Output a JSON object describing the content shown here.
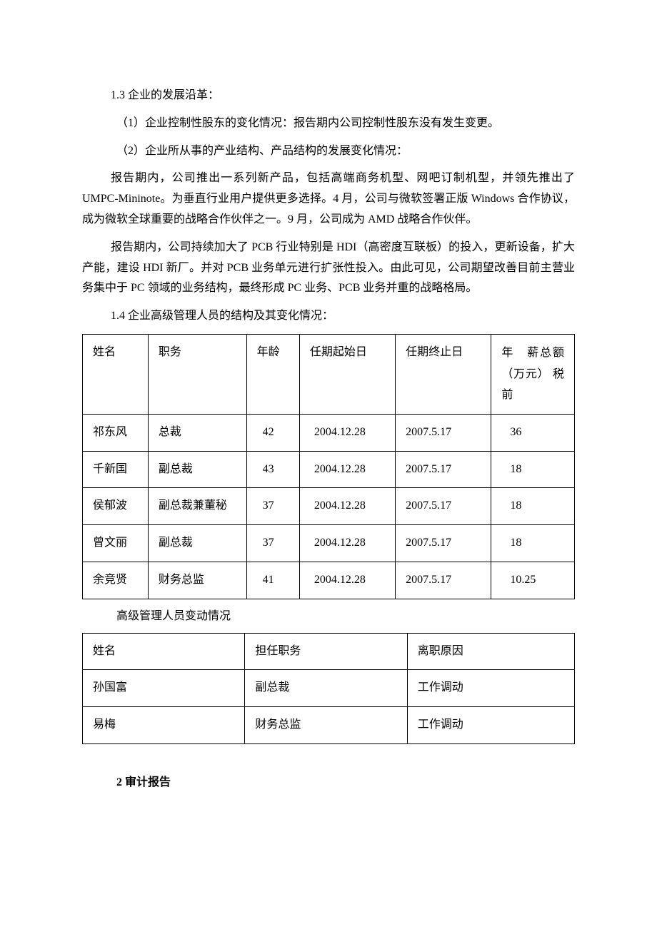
{
  "section_1_3": {
    "heading": "1.3 企业的发展沿革：",
    "item1": "（1）企业控制性股东的变化情况：报告期内公司控制性股东没有发生变更。",
    "item2": "（2）企业所从事的产业结构、产品结构的发展变化情况：",
    "para1": "报告期内，公司推出一系列新产品，包括高端商务机型、网吧订制机型，并领先推出了 UMPC-Mininote。为垂直行业用户提供更多选择。4 月，公司与微软签署正版 Windows 合作协议，成为微软全球重要的战略合作伙伴之一。9 月，公司成为 AMD 战略合作伙伴。",
    "para2": "报告期内，公司持续加大了 PCB 行业特别是 HDI（高密度互联板）的投入，更新设备，扩大产能，建设 HDI 新厂。并对 PCB 业务单元进行扩张性投入。由此可见，公司期望改善目前主营业务集中于 PC 领域的业务结构，最终形成 PC 业务、PCB 业务并重的战略格局。"
  },
  "section_1_4": {
    "heading": "1.4 企业高级管理人员的结构及其变化情况：",
    "mgmt_table": {
      "headers": [
        "姓名",
        "职务",
        "年龄",
        "任期起始日",
        "任期终止日",
        "年　薪总额（万元） 税前"
      ],
      "rows": [
        [
          "祁东风",
          "总裁",
          "42",
          "2004.12.28",
          "2007.5.17",
          "36"
        ],
        [
          "千新国",
          "副总裁",
          "43",
          "2004.12.28",
          "2007.5.17",
          "18"
        ],
        [
          "侯郁波",
          "副总裁兼董秘",
          "37",
          "2004.12.28",
          "2007.5.17",
          "18"
        ],
        [
          "曾文丽",
          "副总裁",
          "37",
          "2004.12.28",
          "2007.5.17",
          "18"
        ],
        [
          "余竞贤",
          "财务总监",
          "41",
          "2004.12.28",
          "2007.5.17",
          "10.25"
        ]
      ]
    },
    "change_caption": "高级管理人员变动情况",
    "change_table": {
      "headers": [
        "姓名",
        "担任职务",
        "离职原因"
      ],
      "rows": [
        [
          "孙国富",
          "副总裁",
          "工作调动"
        ],
        [
          "易梅",
          "财务总监",
          "工作调动"
        ]
      ]
    }
  },
  "section_2": {
    "heading": "2 审计报告"
  }
}
